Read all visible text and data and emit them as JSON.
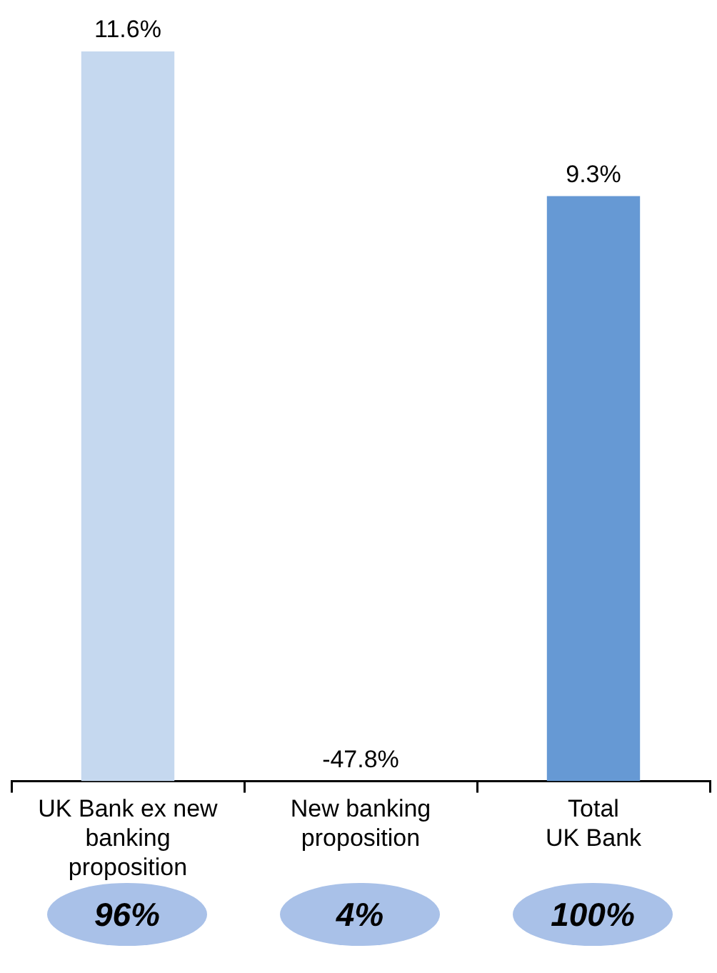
{
  "chart_data": {
    "type": "bar",
    "categories": [
      "UK Bank ex new\nbanking\nproposition",
      "New banking\nproposition",
      "Total\nUK Bank"
    ],
    "values": [
      11.6,
      null,
      9.3
    ],
    "value_labels": [
      "11.6%",
      "-47.8%",
      "9.3%"
    ],
    "colors": [
      "#c5d8ef",
      "#c5d8ef",
      "#6699d4"
    ],
    "ylim": [
      0,
      11.6
    ],
    "grid": false,
    "legend": false,
    "annotations": [
      "96%",
      "4%",
      "100%"
    ]
  }
}
